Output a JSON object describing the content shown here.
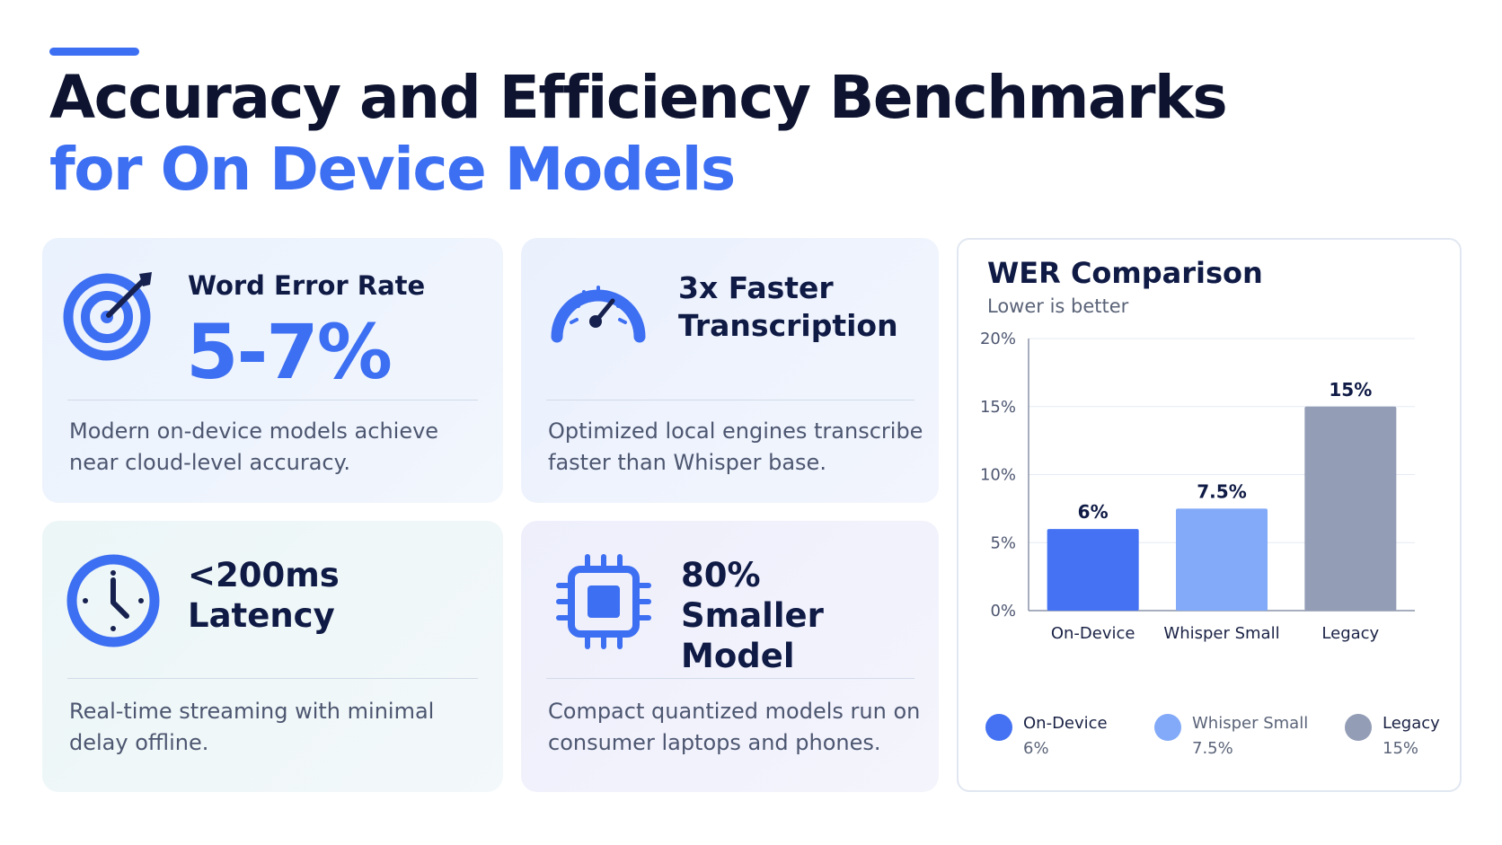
{
  "header": {
    "title_line1": "Accuracy and Efficiency Benchmarks",
    "title_line2": "for On Device Models",
    "accent_color": "#3d6ff2"
  },
  "cards": [
    {
      "icon": "target-icon",
      "label": "Word Error Rate",
      "value": "5-7%",
      "description": "Modern on-device models achieve near cloud-level accuracy."
    },
    {
      "icon": "speedometer-icon",
      "title": "3x Faster Transcription",
      "description": "Optimized local engines transcribe faster than Whisper base."
    },
    {
      "icon": "clock-icon",
      "title": "<200ms Latency",
      "description": "Real-time streaming with minimal delay offline."
    },
    {
      "icon": "chip-icon",
      "title": "80% Smaller Model",
      "description": "Compact quantized models run on consumer laptops and phones."
    }
  ],
  "chart_data": {
    "type": "bar",
    "title": "WER Comparison",
    "subtitle": "Lower is better",
    "categories": [
      "On-Device",
      "Whisper Small",
      "Legacy"
    ],
    "values": [
      6,
      7.5,
      15
    ],
    "value_labels": [
      "6%",
      "7.5%",
      "15%"
    ],
    "colors": [
      "#4472f3",
      "#82aaf8",
      "#939db6"
    ],
    "ylim": [
      0,
      20
    ],
    "yticks": [
      0,
      5,
      10,
      15,
      20
    ],
    "ytick_labels": [
      "0%",
      "5%",
      "10%",
      "15%",
      "20%"
    ],
    "grid": true,
    "legend_position": "bottom",
    "legend": [
      {
        "name": "On-Device",
        "value": "6%",
        "color": "#4472f3"
      },
      {
        "name": "Whisper Small",
        "value": "7.5%",
        "color": "#82aaf8"
      },
      {
        "name": "Legacy",
        "value": "15%",
        "color": "#939db6"
      }
    ]
  }
}
